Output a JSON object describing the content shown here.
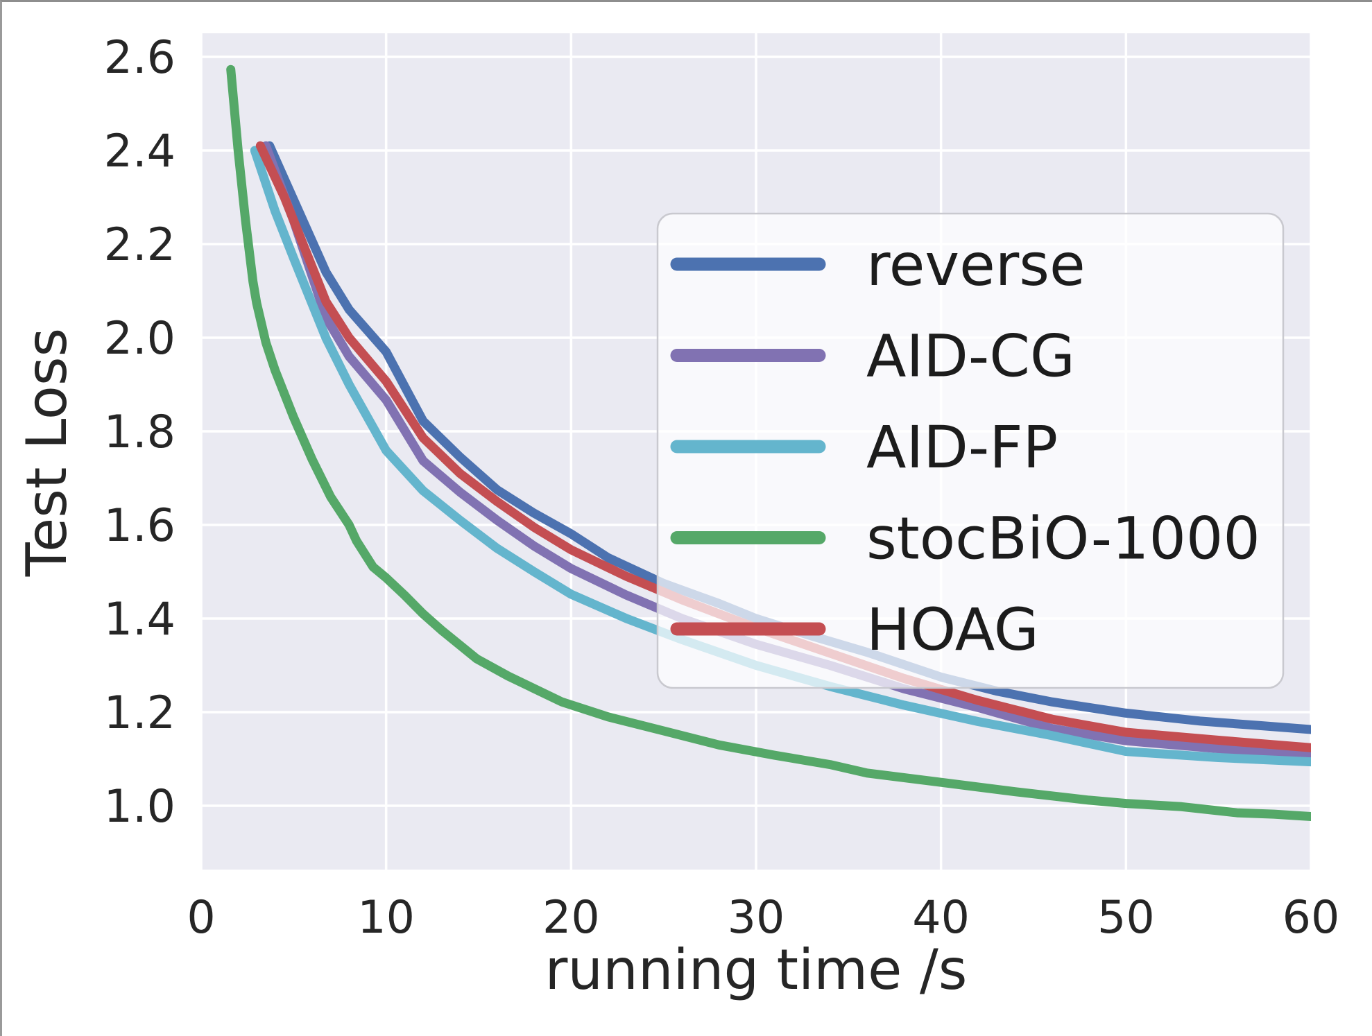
{
  "chart_data": {
    "type": "line",
    "title": "",
    "xlabel": "running time /s",
    "ylabel": "Test Loss",
    "xlim": [
      0,
      60
    ],
    "ylim": [
      0.86,
      2.65
    ],
    "x_ticks": [
      "0",
      "10",
      "20",
      "30",
      "40",
      "50",
      "60"
    ],
    "x_tick_values": [
      0,
      10,
      20,
      30,
      40,
      50,
      60
    ],
    "y_ticks": [
      "2.6",
      "2.4",
      "2.2",
      "2.0",
      "1.8",
      "1.6",
      "1.4",
      "1.2",
      "1.0"
    ],
    "y_tick_values": [
      2.6,
      2.4,
      2.2,
      2.0,
      1.8,
      1.6,
      1.4,
      1.2,
      1.0
    ],
    "grid": true,
    "legend_position": "center-right",
    "plot_background": "#EAEAF2",
    "gridline_color": "#FFFFFF",
    "text_color": "#262626",
    "series": [
      {
        "name": "reverse",
        "color": "#4C72B0",
        "points": [
          [
            3.7,
            2.41
          ],
          [
            5,
            2.295
          ],
          [
            6.75,
            2.14
          ],
          [
            8,
            2.06
          ],
          [
            10,
            1.97
          ],
          [
            12,
            1.822
          ],
          [
            14,
            1.745
          ],
          [
            16,
            1.675
          ],
          [
            18,
            1.625
          ],
          [
            20,
            1.581
          ],
          [
            22,
            1.53
          ],
          [
            25,
            1.475
          ],
          [
            28,
            1.432
          ],
          [
            30,
            1.4
          ],
          [
            33,
            1.363
          ],
          [
            36,
            1.328
          ],
          [
            40,
            1.275
          ],
          [
            43,
            1.245
          ],
          [
            46,
            1.222
          ],
          [
            50,
            1.198
          ],
          [
            54,
            1.181
          ],
          [
            57,
            1.172
          ],
          [
            60,
            1.163
          ]
        ]
      },
      {
        "name": "AID-CG",
        "color": "#8172B2",
        "points": [
          [
            3.5,
            2.41
          ],
          [
            5,
            2.25
          ],
          [
            6.75,
            2.043
          ],
          [
            8,
            1.96
          ],
          [
            10,
            1.867
          ],
          [
            12,
            1.737
          ],
          [
            14,
            1.67
          ],
          [
            16,
            1.61
          ],
          [
            18,
            1.555
          ],
          [
            20,
            1.507
          ],
          [
            23,
            1.45
          ],
          [
            26,
            1.4
          ],
          [
            30,
            1.345
          ],
          [
            34,
            1.3
          ],
          [
            38,
            1.25
          ],
          [
            42,
            1.21
          ],
          [
            46,
            1.165
          ],
          [
            50,
            1.139
          ],
          [
            55,
            1.122
          ],
          [
            60,
            1.11
          ]
        ]
      },
      {
        "name": "AID-FP",
        "color": "#64B5CD",
        "points": [
          [
            2.9,
            2.4
          ],
          [
            4,
            2.27
          ],
          [
            5,
            2.17
          ],
          [
            6.75,
            1.999
          ],
          [
            8,
            1.9
          ],
          [
            10,
            1.759
          ],
          [
            12,
            1.673
          ],
          [
            14,
            1.61
          ],
          [
            16,
            1.55
          ],
          [
            18,
            1.5
          ],
          [
            20,
            1.452
          ],
          [
            23,
            1.4
          ],
          [
            26,
            1.355
          ],
          [
            30,
            1.3
          ],
          [
            34,
            1.255
          ],
          [
            38,
            1.215
          ],
          [
            42,
            1.18
          ],
          [
            46,
            1.15
          ],
          [
            50,
            1.116
          ],
          [
            55,
            1.103
          ],
          [
            60,
            1.094
          ]
        ]
      },
      {
        "name": "stocBiO-1000",
        "color": "#55A868",
        "points": [
          [
            1.6,
            2.573
          ],
          [
            2.0,
            2.4
          ],
          [
            2.4,
            2.25
          ],
          [
            2.8,
            2.12
          ],
          [
            3.0,
            2.074
          ],
          [
            3.5,
            1.99
          ],
          [
            4,
            1.93
          ],
          [
            5,
            1.83
          ],
          [
            6,
            1.74
          ],
          [
            7,
            1.66
          ],
          [
            8,
            1.6
          ],
          [
            8.4,
            1.566
          ],
          [
            9.3,
            1.51
          ],
          [
            10,
            1.487
          ],
          [
            11,
            1.45
          ],
          [
            12,
            1.41
          ],
          [
            13,
            1.375
          ],
          [
            14.9,
            1.314
          ],
          [
            16.6,
            1.277
          ],
          [
            19.5,
            1.222
          ],
          [
            22,
            1.19
          ],
          [
            25,
            1.16
          ],
          [
            28,
            1.13
          ],
          [
            31,
            1.108
          ],
          [
            34,
            1.088
          ],
          [
            36,
            1.07
          ],
          [
            40,
            1.05
          ],
          [
            44,
            1.03
          ],
          [
            48,
            1.012
          ],
          [
            50,
            1.005
          ],
          [
            53,
            0.998
          ],
          [
            56,
            0.985
          ],
          [
            58,
            0.982
          ],
          [
            60,
            0.977
          ]
        ]
      },
      {
        "name": "HOAG",
        "color": "#C44E52",
        "points": [
          [
            3.2,
            2.41
          ],
          [
            4.5,
            2.3
          ],
          [
            6.75,
            2.077
          ],
          [
            8,
            2.0
          ],
          [
            10,
            1.907
          ],
          [
            12,
            1.786
          ],
          [
            14,
            1.71
          ],
          [
            16,
            1.65
          ],
          [
            18,
            1.595
          ],
          [
            20,
            1.547
          ],
          [
            23,
            1.49
          ],
          [
            26,
            1.44
          ],
          [
            30,
            1.38
          ],
          [
            34,
            1.326
          ],
          [
            38,
            1.272
          ],
          [
            42,
            1.225
          ],
          [
            46,
            1.185
          ],
          [
            50,
            1.157
          ],
          [
            55,
            1.14
          ],
          [
            60,
            1.124
          ]
        ]
      }
    ]
  },
  "labels": {
    "xlabel": "running time /s",
    "ylabel": "Test Loss"
  },
  "legend": {
    "entries": [
      "reverse",
      "AID-CG",
      "AID-FP",
      "stocBiO-1000",
      "HOAG"
    ],
    "border_color": "#c9c9cf",
    "fill": "rgba(255,255,255,0.72)"
  }
}
